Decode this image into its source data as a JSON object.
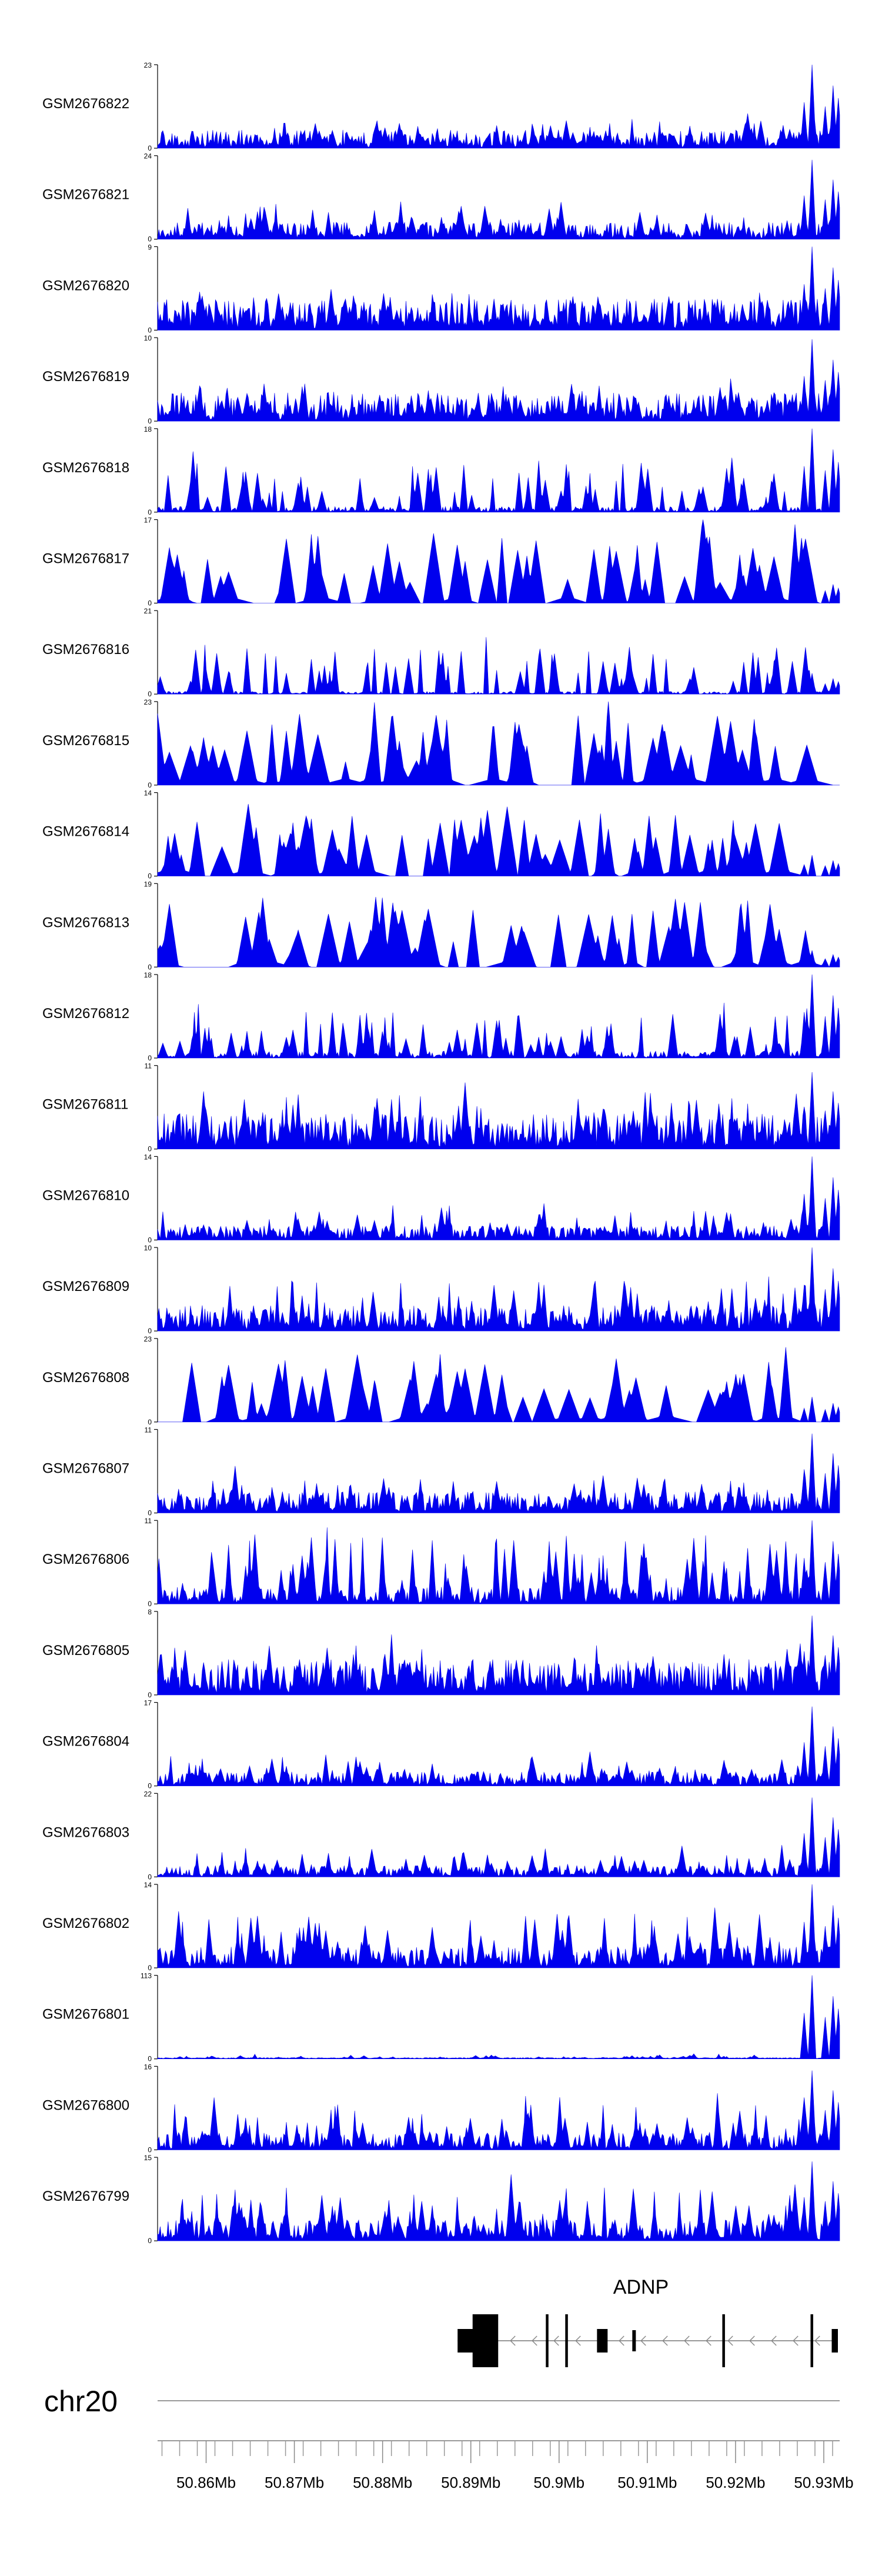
{
  "chart_data": {
    "type": "area",
    "title": "",
    "xlabel": "",
    "ylabel": "",
    "color": "#0000ee",
    "chromosome": "chr20",
    "xlim": [
      50.8545,
      50.9318
    ],
    "x_ticks": [
      "50.86Mb",
      "50.87Mb",
      "50.88Mb",
      "50.89Mb",
      "50.9Mb",
      "50.91Mb",
      "50.92Mb",
      "50.93Mb"
    ],
    "x_tick_values": [
      50.86,
      50.87,
      50.88,
      50.89,
      50.9,
      50.91,
      50.92,
      50.93
    ],
    "tracks": [
      {
        "name": "GSM2676822",
        "ymax": 23,
        "style": "dense",
        "seed": 22,
        "baseline": 0.13,
        "spike": 0.35,
        "end_peak": 1.0
      },
      {
        "name": "GSM2676821",
        "ymax": 24,
        "style": "dense",
        "seed": 21,
        "baseline": 0.12,
        "spike": 0.4,
        "end_peak": 0.95
      },
      {
        "name": "GSM2676820",
        "ymax": 9,
        "style": "dense",
        "seed": 20,
        "baseline": 0.22,
        "spike": 0.45,
        "end_peak": 1.0
      },
      {
        "name": "GSM2676819",
        "ymax": 10,
        "style": "dense",
        "seed": 19,
        "baseline": 0.2,
        "spike": 0.45,
        "end_peak": 0.98
      },
      {
        "name": "GSM2676818",
        "ymax": 18,
        "style": "spiky",
        "seed": 18,
        "baseline": 0.04,
        "spike": 0.6,
        "end_peak": 1.0
      },
      {
        "name": "GSM2676817",
        "ymax": 17,
        "style": "sparse",
        "seed": 17,
        "baseline": 0.0,
        "spike": 0.85,
        "end_peak": 0.3
      },
      {
        "name": "GSM2676816",
        "ymax": 21,
        "style": "spiky",
        "seed": 16,
        "baseline": 0.02,
        "spike": 0.55,
        "end_peak": 0.25
      },
      {
        "name": "GSM2676815",
        "ymax": 23,
        "style": "sparse",
        "seed": 15,
        "baseline": 0.0,
        "spike": 0.85,
        "end_peak": 0.0
      },
      {
        "name": "GSM2676814",
        "ymax": 14,
        "style": "sparse",
        "seed": 14,
        "baseline": 0.0,
        "spike": 0.8,
        "end_peak": 0.25
      },
      {
        "name": "GSM2676813",
        "ymax": 19,
        "style": "sparse",
        "seed": 13,
        "baseline": 0.0,
        "spike": 0.85,
        "end_peak": 0.2
      },
      {
        "name": "GSM2676812",
        "ymax": 18,
        "style": "spiky",
        "seed": 12,
        "baseline": 0.05,
        "spike": 0.55,
        "end_peak": 1.0
      },
      {
        "name": "GSM2676811",
        "ymax": 11,
        "style": "dense",
        "seed": 11,
        "baseline": 0.25,
        "spike": 0.7,
        "end_peak": 0.92
      },
      {
        "name": "GSM2676810",
        "ymax": 14,
        "style": "dense",
        "seed": 10,
        "baseline": 0.1,
        "spike": 0.35,
        "end_peak": 1.0
      },
      {
        "name": "GSM2676809",
        "ymax": 10,
        "style": "dense",
        "seed": 9,
        "baseline": 0.18,
        "spike": 0.6,
        "end_peak": 1.0
      },
      {
        "name": "GSM2676808",
        "ymax": 23,
        "style": "sparse",
        "seed": 8,
        "baseline": 0.0,
        "spike": 0.8,
        "end_peak": 0.3
      },
      {
        "name": "GSM2676807",
        "ymax": 11,
        "style": "dense",
        "seed": 7,
        "baseline": 0.15,
        "spike": 0.45,
        "end_peak": 0.95
      },
      {
        "name": "GSM2676806",
        "ymax": 11,
        "style": "spiky",
        "seed": 6,
        "baseline": 0.12,
        "spike": 0.8,
        "end_peak": 1.0
      },
      {
        "name": "GSM2676805",
        "ymax": 8,
        "style": "dense",
        "seed": 5,
        "baseline": 0.25,
        "spike": 0.6,
        "end_peak": 0.95
      },
      {
        "name": "GSM2676804",
        "ymax": 17,
        "style": "dense",
        "seed": 4,
        "baseline": 0.1,
        "spike": 0.35,
        "end_peak": 0.95
      },
      {
        "name": "GSM2676803",
        "ymax": 22,
        "style": "dense",
        "seed": 3,
        "baseline": 0.08,
        "spike": 0.3,
        "end_peak": 0.95
      },
      {
        "name": "GSM2676802",
        "ymax": 14,
        "style": "spiky",
        "seed": 2,
        "baseline": 0.15,
        "spike": 0.65,
        "end_peak": 1.0
      },
      {
        "name": "GSM2676801",
        "ymax": 113,
        "style": "flat",
        "seed": 1,
        "baseline": 0.01,
        "spike": 0.05,
        "end_peak": 1.0
      },
      {
        "name": "GSM2676800",
        "ymax": 16,
        "style": "spiky",
        "seed": 100,
        "baseline": 0.12,
        "spike": 0.55,
        "end_peak": 0.95
      },
      {
        "name": "GSM2676799",
        "ymax": 15,
        "style": "spiky",
        "seed": 99,
        "baseline": 0.15,
        "spike": 0.65,
        "end_peak": 0.95
      }
    ],
    "gene": {
      "name": "ADNP",
      "strand": "-",
      "start": 50.8885,
      "end": 50.9315,
      "exons": [
        {
          "start": 50.8885,
          "end": 50.8905,
          "size": "thick"
        },
        {
          "start": 50.8902,
          "end": 50.8931,
          "size": "utr"
        },
        {
          "start": 50.8985,
          "end": 50.8988,
          "size": "line"
        },
        {
          "start": 50.9007,
          "end": 50.901,
          "size": "line"
        },
        {
          "start": 50.9043,
          "end": 50.9055,
          "size": "thick"
        },
        {
          "start": 50.9083,
          "end": 50.9087,
          "size": "thin"
        },
        {
          "start": 50.9185,
          "end": 50.9188,
          "size": "line"
        },
        {
          "start": 50.9285,
          "end": 50.9288,
          "size": "line"
        },
        {
          "start": 50.9309,
          "end": 50.9316,
          "size": "thick"
        }
      ]
    }
  }
}
